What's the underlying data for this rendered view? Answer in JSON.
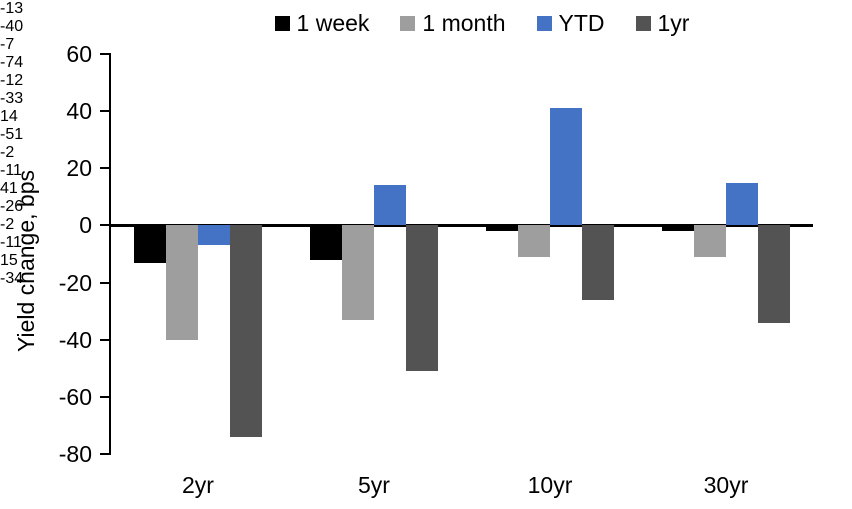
{
  "chart_data": {
    "type": "bar",
    "title": "",
    "xlabel": "",
    "ylabel": "Yield change, bps",
    "categories": [
      "2yr",
      "5yr",
      "10yr",
      "30yr"
    ],
    "series": [
      {
        "name": "1 week",
        "color": "#000000",
        "values": [
          -13,
          -12,
          -2,
          -2
        ]
      },
      {
        "name": "1 month",
        "color": "#9e9e9e",
        "values": [
          -40,
          -33,
          -11,
          -11
        ]
      },
      {
        "name": "YTD",
        "color": "#4472c4",
        "values": [
          -7,
          14,
          41,
          15
        ]
      },
      {
        "name": "1yr",
        "color": "#535353",
        "values": [
          -74,
          -51,
          -26,
          -34
        ]
      }
    ],
    "ylim": [
      -80,
      60
    ],
    "yticks": [
      60,
      40,
      20,
      0,
      -20,
      -40,
      -60,
      -80
    ],
    "grid": false,
    "legend_position": "top-center",
    "value_labels": "outside-end",
    "axis_color": "#000000"
  }
}
